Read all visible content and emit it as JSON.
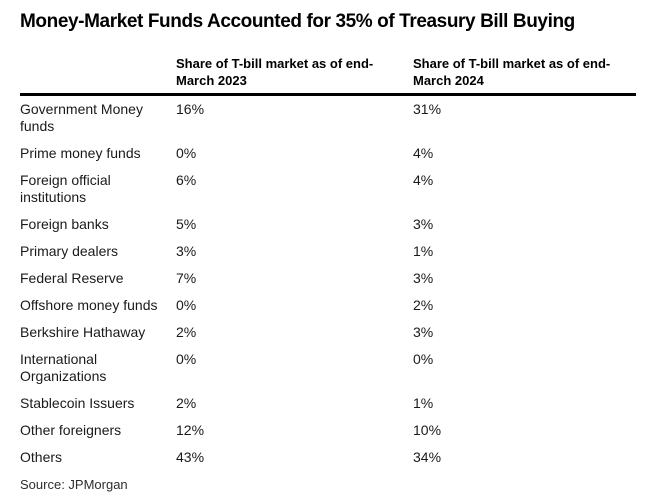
{
  "title": "Money-Market Funds Accounted for 35% of Treasury Bill Buying",
  "table": {
    "headers": [
      "Share of T-bill market as of end-\nMarch 2023",
      "Share of T-bill market as of end-\nMarch 2024"
    ],
    "rows": [
      {
        "label": "Government Money\nfunds",
        "values": [
          "16%",
          "31%"
        ]
      },
      {
        "label": "Prime money funds",
        "values": [
          "0%",
          "4%"
        ]
      },
      {
        "label": "Foreign official\ninstitutions",
        "values": [
          "6%",
          "4%"
        ]
      },
      {
        "label": "Foreign banks",
        "values": [
          "5%",
          "3%"
        ]
      },
      {
        "label": "Primary dealers",
        "values": [
          "3%",
          "1%"
        ]
      },
      {
        "label": "Federal Reserve",
        "values": [
          "7%",
          "3%"
        ]
      },
      {
        "label": "Offshore money funds",
        "values": [
          "0%",
          "2%"
        ]
      },
      {
        "label": "Berkshire Hathaway",
        "values": [
          "2%",
          "3%"
        ]
      },
      {
        "label": "International\nOrganizations",
        "values": [
          "0%",
          "0%"
        ]
      },
      {
        "label": "Stablecoin Issuers",
        "values": [
          "2%",
          "1%"
        ]
      },
      {
        "label": "Other foreigners",
        "values": [
          "12%",
          "10%"
        ]
      },
      {
        "label": "Others",
        "values": [
          "43%",
          "34%"
        ]
      }
    ]
  },
  "source": "Source: JPMorgan",
  "colors": {
    "text": "#000000",
    "rule": "#000000",
    "background": "#ffffff"
  },
  "chart_data": {
    "type": "table",
    "title": "Money-Market Funds Accounted for 35% of Treasury Bill Buying",
    "columns": [
      "Share of T-bill market as of end-March 2023",
      "Share of T-bill market as of end-March 2024"
    ],
    "categories": [
      "Government Money funds",
      "Prime money funds",
      "Foreign official institutions",
      "Foreign banks",
      "Primary dealers",
      "Federal Reserve",
      "Offshore money funds",
      "Berkshire Hathaway",
      "International Organizations",
      "Stablecoin Issuers",
      "Other foreigners",
      "Others"
    ],
    "series": [
      {
        "name": "Share of T-bill market as of end-March 2023",
        "values": [
          16,
          0,
          6,
          5,
          3,
          7,
          0,
          2,
          0,
          2,
          12,
          43
        ]
      },
      {
        "name": "Share of T-bill market as of end-March 2024",
        "values": [
          31,
          4,
          4,
          3,
          1,
          3,
          2,
          3,
          0,
          1,
          10,
          34
        ]
      }
    ],
    "unit": "%",
    "source": "Source: JPMorgan"
  }
}
